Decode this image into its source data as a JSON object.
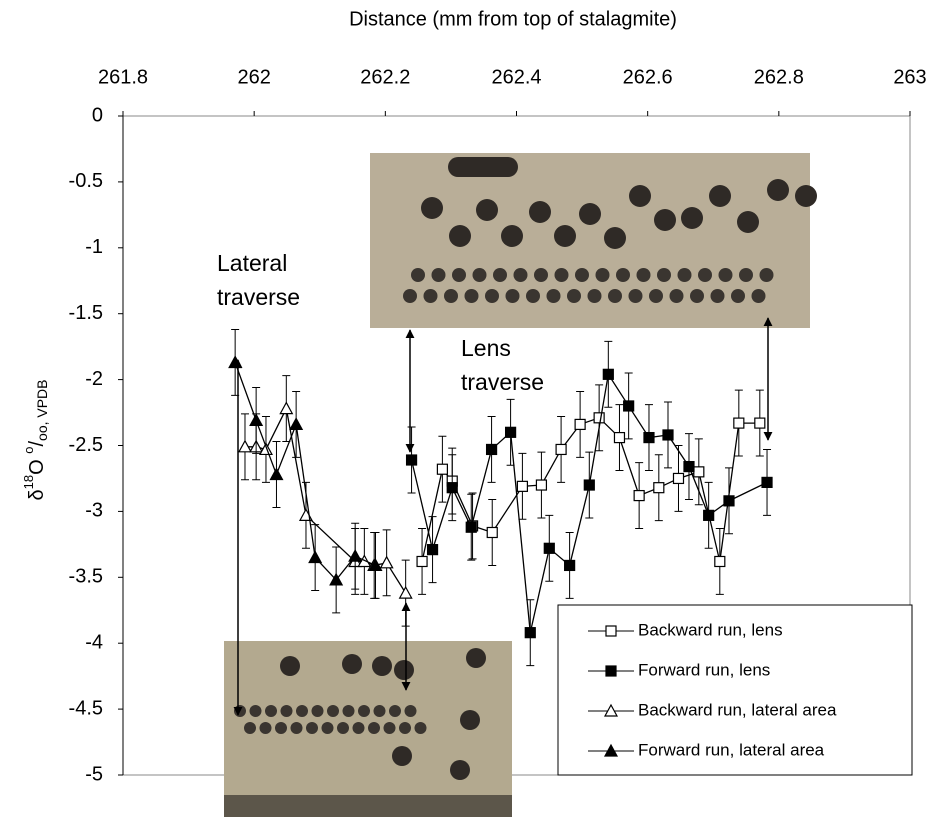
{
  "chart_data": {
    "type": "scatter",
    "title": "Distance (mm from top of stalagmite)",
    "ylabel_parts": [
      "δ",
      "18",
      "O ",
      "o",
      "/",
      "oo, VPDB"
    ],
    "xlim": [
      261.8,
      263
    ],
    "xticks": [
      261.8,
      262,
      262.2,
      262.4,
      262.6,
      262.8,
      263
    ],
    "ylim": [
      -5,
      0
    ],
    "yticks": [
      0,
      -0.5,
      -1,
      -1.5,
      -2,
      -2.5,
      -3,
      -3.5,
      -4,
      -4.5,
      -5
    ],
    "annotations": [
      {
        "lines": [
          "Lateral",
          "traverse"
        ]
      },
      {
        "lines": [
          "Lens",
          "traverse"
        ]
      }
    ],
    "legend": "bottom-right",
    "series": [
      {
        "name": "Backward run, lens",
        "marker": "square",
        "filled": false,
        "color": "#000000",
        "error": 0.25,
        "x": [
          262.256,
          262.287,
          262.302,
          262.333,
          262.363,
          262.409,
          262.438,
          262.468,
          262.497,
          262.526,
          262.557,
          262.587,
          262.617,
          262.647,
          262.678,
          262.71,
          262.739,
          262.771
        ],
        "values": [
          -3.38,
          -2.68,
          -2.77,
          -3.11,
          -3.16,
          -2.81,
          -2.8,
          -2.53,
          -2.34,
          -2.29,
          -2.44,
          -2.88,
          -2.82,
          -2.75,
          -2.7,
          -3.38,
          -2.33,
          -2.33
        ]
      },
      {
        "name": "Forward run, lens",
        "marker": "square",
        "filled": true,
        "color": "#000000",
        "error": 0.25,
        "x": [
          262.24,
          262.272,
          262.302,
          262.331,
          262.362,
          262.391,
          262.421,
          262.45,
          262.481,
          262.511,
          262.54,
          262.571,
          262.602,
          262.631,
          262.663,
          262.693,
          262.724,
          262.782
        ],
        "values": [
          -2.61,
          -3.29,
          -2.82,
          -3.12,
          -2.53,
          -2.4,
          -3.92,
          -3.28,
          -3.41,
          -2.8,
          -1.96,
          -2.2,
          -2.44,
          -2.42,
          -2.66,
          -3.03,
          -2.92,
          -2.78
        ]
      },
      {
        "name": "Backward run, lateral area",
        "marker": "triangle",
        "filled": false,
        "color": "#000000",
        "error": 0.25,
        "x": [
          261.986,
          262.003,
          262.018,
          262.049,
          262.079,
          262.154,
          262.168,
          262.183,
          262.202,
          262.231
        ],
        "values": [
          -2.51,
          -2.51,
          -2.53,
          -2.22,
          -3.03,
          -3.38,
          -3.38,
          -3.41,
          -3.39,
          -3.62
        ]
      },
      {
        "name": "Forward run, lateral area",
        "marker": "triangle",
        "filled": true,
        "color": "#000000",
        "error": 0.25,
        "x": [
          261.971,
          262.003,
          262.034,
          262.064,
          262.093,
          262.125,
          262.154,
          262.185
        ],
        "values": [
          -1.87,
          -2.31,
          -2.72,
          -2.34,
          -3.35,
          -3.52,
          -3.34,
          -3.41
        ]
      }
    ]
  }
}
